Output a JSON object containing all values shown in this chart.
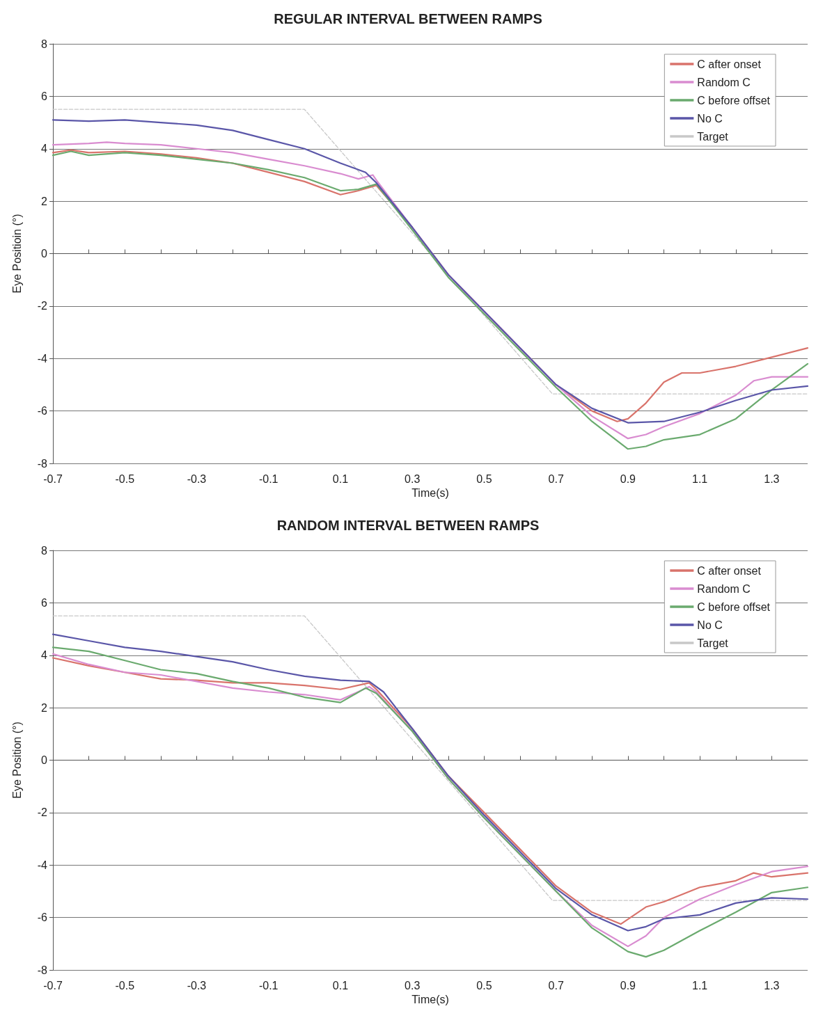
{
  "chart_data": [
    {
      "type": "line",
      "title": "REGULAR INTERVAL BETWEEN RAMPS",
      "xlabel": "Time(s)",
      "ylabel": "Eye Positioin (°)",
      "xlim": [
        -0.7,
        1.4
      ],
      "ylim": [
        -8,
        8
      ],
      "xticks": [
        -0.7,
        {
          "value": -0.6,
          "label": null
        },
        -0.5,
        {
          "value": -0.4,
          "label": null
        },
        -0.3,
        {
          "value": -0.2,
          "label": null
        },
        -0.1,
        {
          "value": 0,
          "label": null
        },
        0.1,
        {
          "value": 0.2,
          "label": null
        },
        0.3,
        {
          "value": 0.4,
          "label": null
        },
        0.5,
        {
          "value": 0.6,
          "label": null
        },
        0.7,
        {
          "value": 0.8,
          "label": null
        },
        0.9,
        {
          "value": 1.0,
          "label": null
        },
        1.1,
        {
          "value": 1.2,
          "label": null
        },
        1.3
      ],
      "yticks": [
        -8,
        -6,
        -4,
        -2,
        0,
        2,
        4,
        6,
        8
      ],
      "grid": "y",
      "legend": "top right",
      "marker": "none",
      "series": [
        {
          "name": "C after onset",
          "color": "#d9736b",
          "x": [
            -0.7,
            -0.65,
            -0.6,
            -0.5,
            -0.4,
            -0.3,
            -0.2,
            -0.1,
            0,
            0.1,
            0.15,
            0.2,
            0.3,
            0.4,
            0.5,
            0.6,
            0.7,
            0.8,
            0.87,
            0.9,
            0.95,
            1.0,
            1.05,
            1.1,
            1.2,
            1.3,
            1.4
          ],
          "values": [
            3.85,
            3.95,
            3.85,
            3.9,
            3.8,
            3.65,
            3.45,
            3.1,
            2.75,
            2.25,
            2.4,
            2.6,
            1.0,
            -0.8,
            -2.2,
            -3.6,
            -5.0,
            -6.0,
            -6.4,
            -6.3,
            -5.7,
            -4.9,
            -4.55,
            -4.55,
            -4.3,
            -3.95,
            -3.6
          ]
        },
        {
          "name": "Random C",
          "color": "#d98cd0",
          "x": [
            -0.7,
            -0.6,
            -0.55,
            -0.5,
            -0.4,
            -0.3,
            -0.2,
            -0.1,
            0,
            0.1,
            0.15,
            0.19,
            0.2,
            0.3,
            0.4,
            0.5,
            0.6,
            0.7,
            0.8,
            0.9,
            0.95,
            1.0,
            1.1,
            1.2,
            1.25,
            1.3,
            1.4
          ],
          "values": [
            4.15,
            4.2,
            4.25,
            4.2,
            4.15,
            4.0,
            3.85,
            3.6,
            3.35,
            3.05,
            2.85,
            3.0,
            2.8,
            1.0,
            -0.8,
            -2.2,
            -3.6,
            -5.0,
            -6.2,
            -7.05,
            -6.9,
            -6.6,
            -6.1,
            -5.4,
            -4.85,
            -4.7,
            -4.7
          ]
        },
        {
          "name": "C before offset",
          "color": "#6aaa6e",
          "x": [
            -0.7,
            -0.65,
            -0.6,
            -0.5,
            -0.4,
            -0.3,
            -0.2,
            -0.1,
            0,
            0.1,
            0.15,
            0.2,
            0.3,
            0.4,
            0.5,
            0.6,
            0.7,
            0.8,
            0.9,
            0.95,
            1.0,
            1.1,
            1.2,
            1.3,
            1.4
          ],
          "values": [
            3.75,
            3.9,
            3.75,
            3.85,
            3.75,
            3.6,
            3.45,
            3.2,
            2.9,
            2.4,
            2.45,
            2.65,
            0.9,
            -0.9,
            -2.3,
            -3.7,
            -5.1,
            -6.4,
            -7.45,
            -7.35,
            -7.1,
            -6.9,
            -6.3,
            -5.2,
            -4.2
          ]
        },
        {
          "name": "No C",
          "color": "#5a56a8",
          "x": [
            -0.7,
            -0.6,
            -0.5,
            -0.4,
            -0.3,
            -0.2,
            -0.1,
            0,
            0.1,
            0.17,
            0.2,
            0.3,
            0.4,
            0.5,
            0.6,
            0.7,
            0.8,
            0.9,
            1.0,
            1.1,
            1.2,
            1.3,
            1.4
          ],
          "values": [
            5.1,
            5.05,
            5.1,
            5.0,
            4.9,
            4.7,
            4.35,
            4.0,
            3.45,
            3.1,
            2.7,
            1.0,
            -0.8,
            -2.2,
            -3.6,
            -5.0,
            -5.9,
            -6.45,
            -6.4,
            -6.05,
            -5.6,
            -5.2,
            -5.05
          ]
        },
        {
          "name": "Target",
          "color": "#c8c8c8",
          "line_style": "dashed",
          "x": [
            -0.7,
            0,
            0.69,
            1.4
          ],
          "values": [
            5.5,
            5.5,
            -5.35,
            -5.35
          ]
        }
      ]
    },
    {
      "type": "line",
      "title": "RANDOM INTERVAL BETWEEN RAMPS",
      "xlabel": "Time(s)",
      "ylabel": "Eye Position (°)",
      "xlim": [
        -0.7,
        1.4
      ],
      "ylim": [
        -8,
        8
      ],
      "xticks": [
        -0.7,
        {
          "value": -0.6,
          "label": null
        },
        -0.5,
        {
          "value": -0.4,
          "label": null
        },
        -0.3,
        {
          "value": -0.2,
          "label": null
        },
        -0.1,
        {
          "value": 0,
          "label": null
        },
        0.1,
        {
          "value": 0.2,
          "label": null
        },
        0.3,
        {
          "value": 0.4,
          "label": null
        },
        0.5,
        {
          "value": 0.6,
          "label": null
        },
        0.7,
        {
          "value": 0.8,
          "label": null
        },
        0.9,
        {
          "value": 1.0,
          "label": null
        },
        1.1,
        {
          "value": 1.2,
          "label": null
        },
        1.3
      ],
      "yticks": [
        -8,
        -6,
        -4,
        -2,
        0,
        2,
        4,
        6,
        8
      ],
      "grid": "y",
      "legend": "top right",
      "marker": "none",
      "series": [
        {
          "name": "C after onset",
          "color": "#d9736b",
          "x": [
            -0.7,
            -0.6,
            -0.5,
            -0.4,
            -0.3,
            -0.2,
            -0.1,
            0,
            0.1,
            0.18,
            0.2,
            0.3,
            0.4,
            0.5,
            0.6,
            0.7,
            0.8,
            0.88,
            0.95,
            1.0,
            1.1,
            1.2,
            1.25,
            1.3,
            1.4
          ],
          "values": [
            3.9,
            3.6,
            3.35,
            3.1,
            3.05,
            2.95,
            2.95,
            2.85,
            2.7,
            2.95,
            2.7,
            1.2,
            -0.6,
            -2.0,
            -3.4,
            -4.8,
            -5.8,
            -6.25,
            -5.6,
            -5.4,
            -4.85,
            -4.6,
            -4.3,
            -4.45,
            -4.3
          ]
        },
        {
          "name": "Random C",
          "color": "#d98cd0",
          "x": [
            -0.7,
            -0.6,
            -0.5,
            -0.4,
            -0.3,
            -0.2,
            -0.1,
            0,
            0.1,
            0.18,
            0.2,
            0.3,
            0.4,
            0.5,
            0.6,
            0.7,
            0.8,
            0.9,
            0.95,
            1.0,
            1.1,
            1.2,
            1.3,
            1.4
          ],
          "values": [
            4.05,
            3.65,
            3.35,
            3.25,
            3.0,
            2.75,
            2.6,
            2.5,
            2.3,
            2.8,
            2.6,
            1.1,
            -0.7,
            -2.2,
            -3.6,
            -5.0,
            -6.3,
            -7.1,
            -6.7,
            -6.0,
            -5.3,
            -4.75,
            -4.25,
            -4.05
          ]
        },
        {
          "name": "C before offset",
          "color": "#6aaa6e",
          "x": [
            -0.7,
            -0.6,
            -0.5,
            -0.4,
            -0.3,
            -0.2,
            -0.1,
            0,
            0.1,
            0.17,
            0.2,
            0.3,
            0.4,
            0.5,
            0.6,
            0.7,
            0.8,
            0.9,
            0.95,
            1.0,
            1.1,
            1.2,
            1.3,
            1.4
          ],
          "values": [
            4.3,
            4.15,
            3.8,
            3.45,
            3.3,
            3.0,
            2.75,
            2.4,
            2.2,
            2.75,
            2.55,
            1.1,
            -0.7,
            -2.2,
            -3.6,
            -5.0,
            -6.4,
            -7.3,
            -7.5,
            -7.25,
            -6.5,
            -5.8,
            -5.05,
            -4.85
          ]
        },
        {
          "name": "No C",
          "color": "#5a56a8",
          "x": [
            -0.7,
            -0.6,
            -0.5,
            -0.4,
            -0.3,
            -0.2,
            -0.1,
            0,
            0.1,
            0.18,
            0.22,
            0.3,
            0.4,
            0.5,
            0.6,
            0.7,
            0.8,
            0.9,
            0.95,
            1.0,
            1.1,
            1.2,
            1.3,
            1.4
          ],
          "values": [
            4.8,
            4.55,
            4.3,
            4.15,
            3.95,
            3.75,
            3.45,
            3.2,
            3.05,
            3.0,
            2.6,
            1.2,
            -0.6,
            -2.1,
            -3.5,
            -4.9,
            -5.9,
            -6.5,
            -6.35,
            -6.05,
            -5.9,
            -5.45,
            -5.25,
            -5.3
          ]
        },
        {
          "name": "Target",
          "color": "#c8c8c8",
          "line_style": "dashed",
          "x": [
            -0.7,
            0,
            0.69,
            1.4
          ],
          "values": [
            5.5,
            5.5,
            -5.35,
            -5.35
          ]
        }
      ]
    }
  ]
}
